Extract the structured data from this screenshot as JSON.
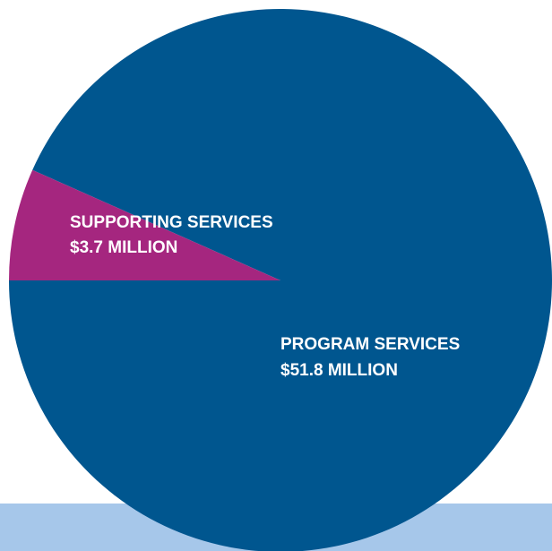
{
  "colors": {
    "program": "#00568f",
    "supporting": "#a5267f",
    "band": "#a6c7ea"
  },
  "chart_data": {
    "type": "pie",
    "units": "$ million",
    "slices": [
      {
        "label": "PROGRAM SERVICES",
        "value": 51.8,
        "value_label": "$51.8 MILLION"
      },
      {
        "label": "SUPPORTING SERVICES",
        "value": 3.7,
        "value_label": "$3.7 MILLION"
      }
    ]
  }
}
